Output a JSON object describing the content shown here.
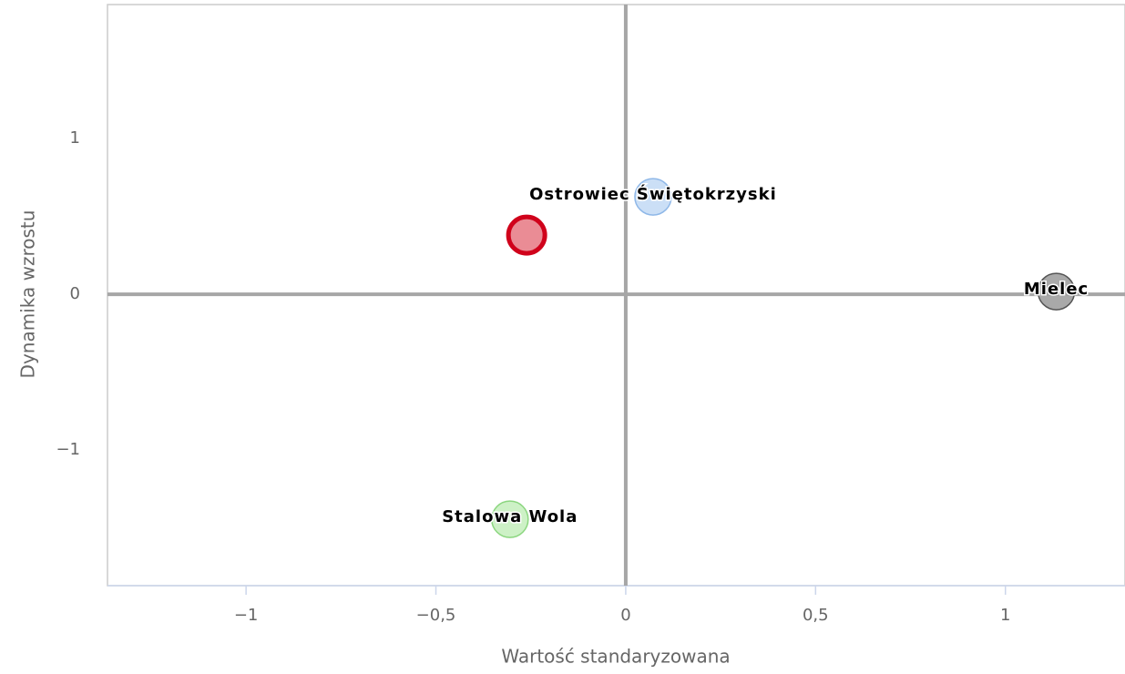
{
  "chart_data": {
    "type": "scatter",
    "xlabel": "Wartość standaryzowana",
    "ylabel": "Dynamika wzrostu",
    "xlim": [
      -1.365,
      1.315
    ],
    "ylim": [
      -1.87,
      1.86
    ],
    "xticks": [
      {
        "value": -1,
        "label": "−1"
      },
      {
        "value": -0.5,
        "label": "−0,5"
      },
      0,
      {
        "value": 0.5,
        "label": "0,5"
      },
      1
    ],
    "yticks": [
      {
        "value": -1,
        "label": "−1"
      },
      0,
      1
    ],
    "zero_lines": true,
    "series": [
      {
        "color": "#e8808a",
        "border": "#d0021b",
        "x": [
          -0.261
        ],
        "values": [
          0.38
        ]
      },
      {
        "name": "Ostrowiec Świętokrzyski",
        "color": "#c5dcf5",
        "border": "#8fb8e8",
        "x": [
          0.072
        ],
        "values": [
          0.626
        ]
      },
      {
        "name": "Mielec",
        "color": "#a0a0a0",
        "border": "#555555",
        "x": [
          1.134
        ],
        "values": [
          0.018
        ]
      },
      {
        "name": "Stalowa Wola",
        "color": "#c8f0c0",
        "border": "#8bd67f",
        "x": [
          -0.305
        ],
        "values": [
          -1.444
        ]
      }
    ]
  }
}
